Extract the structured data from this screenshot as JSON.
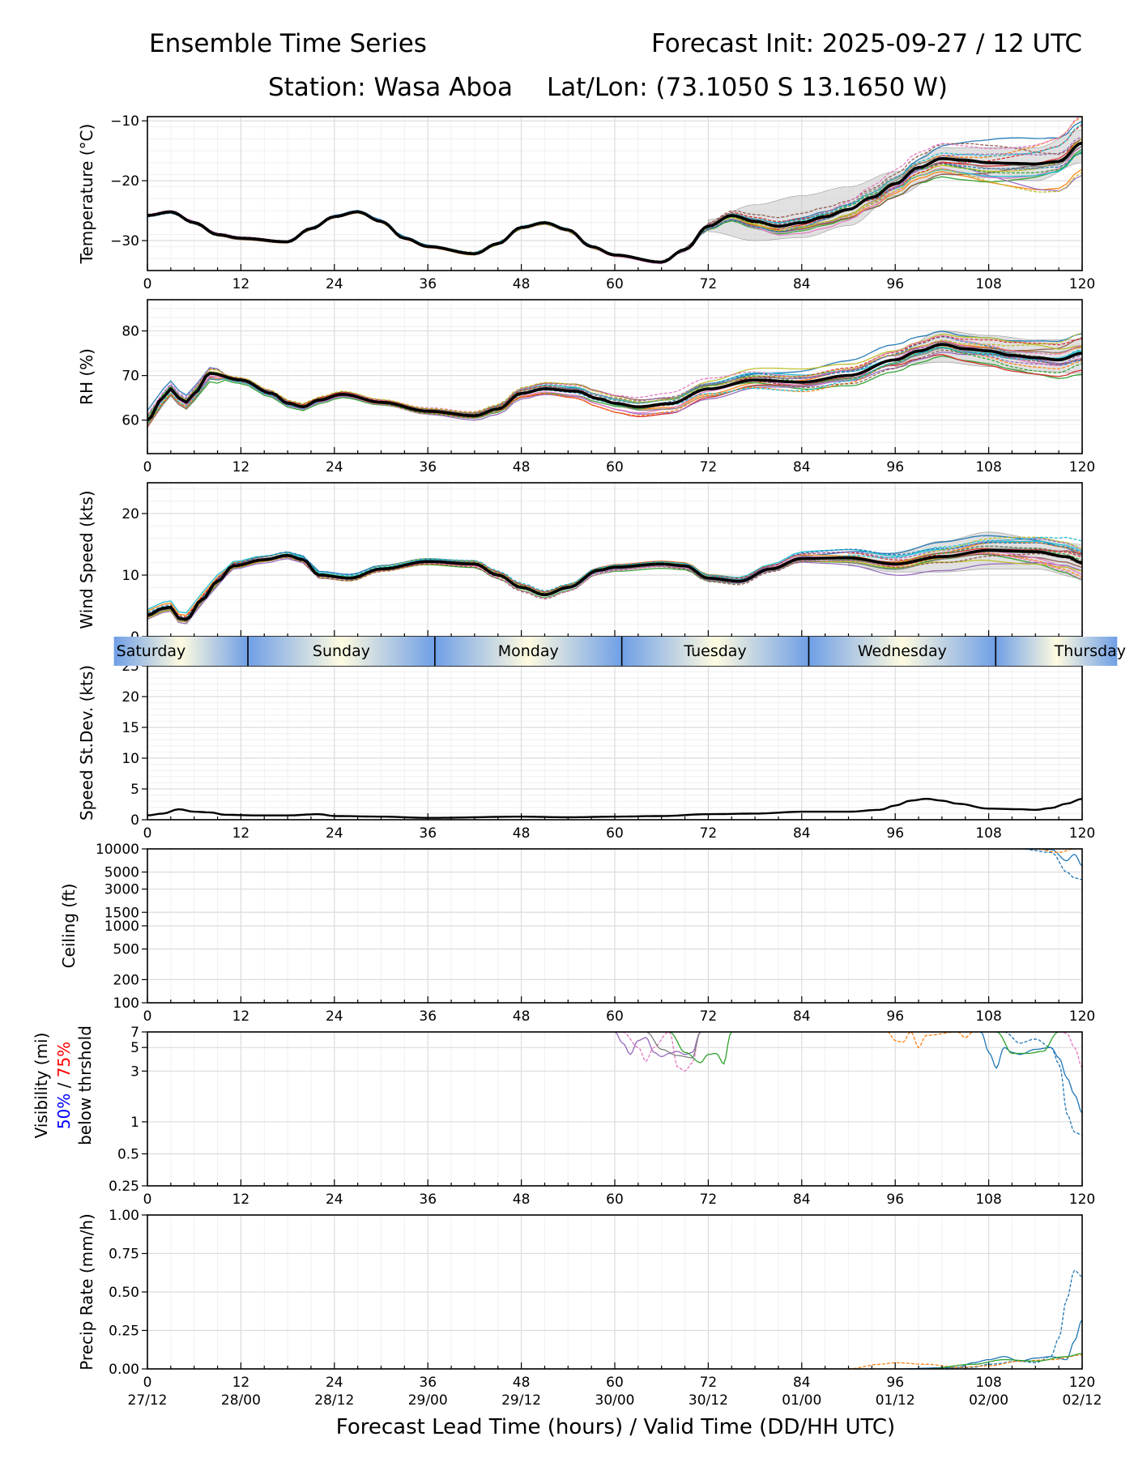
{
  "header": {
    "title_left": "Ensemble Time Series",
    "title_right": "Forecast Init: 2025-09-27 / 12 UTC",
    "station": "Station: Wasa Aboa",
    "latlon": "Lat/Lon: (73.1050 S 13.1650 W)"
  },
  "colors": {
    "members": [
      "#1f77b4",
      "#ff7f0e",
      "#2ca02c",
      "#d62728",
      "#9467bd",
      "#8c564b",
      "#e377c2",
      "#7f7f7f",
      "#bcbd22",
      "#17becf"
    ],
    "mean": "#000000",
    "spread_fill": "#c8c8c8",
    "day_band_a": "#6f9fe6",
    "day_band_b": "#fffbe0",
    "vis_label_50": "#0000ff",
    "vis_label_75": "#ff0000"
  },
  "xaxis": {
    "ticks": [
      "0",
      "12",
      "24",
      "36",
      "48",
      "60",
      "72",
      "84",
      "96",
      "108",
      "120"
    ],
    "valid_times": [
      "27/12",
      "28/00",
      "28/12",
      "29/00",
      "29/12",
      "30/00",
      "30/12",
      "01/00",
      "01/12",
      "02/00",
      "02/12"
    ],
    "label": "Forecast Lead Time (hours) / Valid Time (DD/HH UTC)",
    "range": [
      0,
      120
    ]
  },
  "day_band": {
    "days": [
      "Saturday",
      "Sunday",
      "Monday",
      "Tuesday",
      "Wednesday",
      "Thursday"
    ],
    "boundaries_hours": [
      12.9,
      36.9,
      60.9,
      84.9,
      108.9
    ]
  },
  "vis_label": {
    "line1": "Visibility (mi)",
    "pct50": "50%",
    "sep": " / ",
    "pct75": "75%",
    "line3": "below thrshold"
  },
  "chart_data": [
    {
      "id": "temp",
      "type": "line",
      "ylabel": "Temperature (°C)",
      "ylim": [
        -35,
        -9.3
      ],
      "yticks": [
        -30,
        -20,
        -10
      ],
      "ytick_labels": [
        "−30",
        "−20",
        "−10"
      ],
      "series": [
        {
          "name": "ensemble-mean",
          "x": [
            0,
            3,
            6,
            9,
            12,
            18,
            21,
            24,
            27,
            30,
            33,
            36,
            42,
            45,
            48,
            51,
            54,
            57,
            60,
            66,
            69,
            72,
            75,
            78,
            81,
            84,
            87,
            90,
            93,
            96,
            99,
            102,
            105,
            108,
            111,
            114,
            117,
            120
          ],
          "values": [
            -25.8,
            -25.2,
            -27,
            -29,
            -29.6,
            -30.2,
            -28,
            -26,
            -25.2,
            -26.8,
            -29.6,
            -31,
            -32.2,
            -30.5,
            -27.8,
            -27,
            -28.2,
            -31,
            -32.4,
            -33.6,
            -31.5,
            -27.6,
            -25.8,
            -26.8,
            -27.6,
            -27,
            -26,
            -24.8,
            -22.8,
            -20.5,
            -17.8,
            -16.3,
            -16.6,
            -17,
            -17.1,
            -17.2,
            -16.8,
            -13.7
          ]
        }
      ],
      "spread": {
        "x": [
          72,
          78,
          84,
          90,
          96,
          102,
          108,
          114,
          120
        ],
        "low": [
          -28.5,
          -30,
          -29.5,
          -27.5,
          -22.5,
          -19,
          -19.5,
          -20,
          -17
        ],
        "high": [
          -26.5,
          -24,
          -22.5,
          -21,
          -18.5,
          -14.5,
          -14.5,
          -14.5,
          -11.5
        ]
      }
    },
    {
      "id": "rh",
      "type": "line",
      "ylabel": "RH (%)",
      "ylim": [
        52.5,
        87
      ],
      "yticks": [
        60,
        70,
        80
      ],
      "ytick_labels": [
        "60",
        "70",
        "80"
      ],
      "series": [
        {
          "name": "ensemble-mean",
          "x": [
            0,
            2,
            3,
            4,
            5,
            6,
            8,
            12,
            16,
            18,
            20,
            22,
            25,
            30,
            36,
            42,
            45,
            48,
            51,
            55,
            58,
            60,
            63,
            67,
            72,
            78,
            84,
            90,
            96,
            99,
            102,
            105,
            108,
            111,
            114,
            117,
            120
          ],
          "values": [
            60,
            65,
            67,
            65,
            64,
            66,
            70.5,
            69,
            66,
            63.8,
            63,
            64.5,
            65.8,
            64,
            62,
            61,
            62.5,
            66,
            67,
            66.5,
            64.8,
            63.8,
            63,
            63.7,
            67,
            69,
            68.5,
            70,
            73.5,
            75.5,
            77,
            76,
            75.5,
            74.5,
            74,
            73.5,
            75
          ]
        }
      ],
      "spread": {
        "x": [
          96,
          102,
          108,
          114,
          120
        ],
        "low": [
          72,
          73,
          72,
          71,
          70.5
        ],
        "high": [
          75,
          80,
          79,
          78,
          78
        ]
      }
    },
    {
      "id": "wspd",
      "type": "line",
      "ylabel": "Wind Speed (kts)",
      "ylim": [
        0,
        25
      ],
      "yticks": [
        0,
        10,
        20
      ],
      "ytick_labels": [
        "0",
        "10",
        "20"
      ],
      "series": [
        {
          "name": "ensemble-mean",
          "x": [
            0,
            2,
            3,
            4,
            5,
            7,
            9,
            11,
            15,
            18,
            20,
            22,
            26,
            30,
            36,
            42,
            45,
            48,
            51,
            54,
            58,
            60,
            66,
            69,
            72,
            76,
            80,
            84,
            90,
            96,
            102,
            108,
            114,
            118,
            120
          ],
          "values": [
            3.5,
            4.6,
            4.8,
            3,
            2.8,
            6,
            9,
            11.5,
            12.5,
            13.2,
            12.5,
            10,
            9.5,
            11,
            12.2,
            11.8,
            10,
            8,
            6.8,
            8,
            10.8,
            11.3,
            11.8,
            11.5,
            9.5,
            9,
            11,
            12.7,
            12.8,
            11.8,
            13,
            14,
            13.8,
            13,
            12
          ]
        }
      ],
      "spread": {
        "x": [
          90,
          96,
          102,
          108,
          114,
          120
        ],
        "low": [
          11.5,
          10.5,
          10.5,
          11,
          11,
          9.5
        ],
        "high": [
          13.5,
          13.5,
          15.5,
          17,
          16,
          15
        ]
      }
    },
    {
      "id": "sdev",
      "type": "line",
      "ylabel": "Speed St.Dev. (kts)",
      "ylim": [
        0,
        25
      ],
      "yticks": [
        0,
        5,
        10,
        15,
        20,
        25
      ],
      "ytick_labels": [
        "0",
        "5",
        "10",
        "15",
        "20",
        "25"
      ],
      "series": [
        {
          "name": "speed-stdev",
          "x": [
            0,
            2,
            4,
            6,
            8,
            10,
            14,
            18,
            22,
            24,
            30,
            36,
            48,
            54,
            60,
            66,
            72,
            78,
            84,
            90,
            94,
            96,
            98,
            100,
            102,
            104,
            108,
            112,
            114,
            116,
            118,
            120
          ],
          "values": [
            0.7,
            1,
            1.7,
            1.3,
            1.2,
            0.8,
            0.7,
            0.7,
            0.9,
            0.6,
            0.5,
            0.3,
            0.5,
            0.4,
            0.5,
            0.6,
            0.9,
            1,
            1.3,
            1.3,
            1.6,
            2.3,
            3.1,
            3.4,
            3.1,
            2.6,
            1.8,
            1.7,
            1.6,
            1.9,
            2.6,
            3.4
          ]
        }
      ]
    },
    {
      "id": "ceiling",
      "type": "line",
      "ylabel": "Ceiling (ft)",
      "yscale": "log",
      "ylim": [
        100,
        10000
      ],
      "yticks": [
        100,
        200,
        500,
        1000,
        1500,
        3000,
        5000,
        10000
      ],
      "ytick_labels": [
        "100",
        "200",
        "500",
        "1000",
        "1500",
        "3000",
        "5000",
        "10000"
      ],
      "series": [
        {
          "name": "member-blue-solid",
          "x": [
            108,
            112,
            116,
            118,
            119,
            120
          ],
          "values": [
            10000,
            10000,
            9800,
            7000,
            8500,
            6000
          ]
        },
        {
          "name": "member-blue-dashed",
          "x": [
            112,
            116,
            118,
            119,
            120
          ],
          "values": [
            10000,
            9000,
            5000,
            4200,
            4000
          ]
        },
        {
          "name": "member-orange-dashed",
          "x": [
            114,
            117,
            119,
            120
          ],
          "values": [
            10000,
            9000,
            10000,
            10000
          ]
        }
      ]
    },
    {
      "id": "vis",
      "type": "line",
      "yscale": "log",
      "ylim": [
        0.25,
        7
      ],
      "yticks": [
        0.25,
        0.5,
        1,
        3,
        5,
        7
      ],
      "ytick_labels": [
        "0.25",
        "0.5",
        "1",
        "3",
        "5",
        "7"
      ],
      "series": [
        {
          "name": "member-purple",
          "x": [
            60,
            61,
            62,
            63,
            64,
            65,
            66,
            67,
            68,
            69,
            70,
            71
          ],
          "values": [
            7,
            5.5,
            4.3,
            5.8,
            6.2,
            4.5,
            4.1,
            4.4,
            4.6,
            4.3,
            4.5,
            7
          ]
        },
        {
          "name": "member-pink-dashed",
          "x": [
            61,
            63,
            64,
            65,
            67,
            68,
            69,
            70,
            71
          ],
          "values": [
            7,
            5,
            3.7,
            5,
            7,
            3.3,
            3,
            3.6,
            7
          ]
        },
        {
          "name": "member-green",
          "x": [
            67,
            69,
            71,
            72,
            73,
            74,
            75
          ],
          "values": [
            7,
            4.5,
            3.6,
            4.3,
            4.4,
            3.5,
            7
          ]
        },
        {
          "name": "member-grey",
          "x": [
            64,
            66,
            68,
            70,
            71
          ],
          "values": [
            7,
            4.8,
            4.2,
            4,
            7
          ]
        },
        {
          "name": "member-orange-dashed",
          "x": [
            95,
            96,
            97,
            98,
            99,
            100,
            104,
            105,
            106
          ],
          "values": [
            7,
            5.8,
            5.6,
            7,
            5,
            6.5,
            7,
            6.2,
            7
          ]
        },
        {
          "name": "member-blue",
          "x": [
            107,
            108,
            109,
            110,
            111,
            112,
            114,
            116,
            117,
            118,
            119,
            120
          ],
          "values": [
            7,
            4.5,
            3.2,
            5,
            4.5,
            4.3,
            4.8,
            5,
            4,
            2.6,
            1.8,
            1.2
          ]
        },
        {
          "name": "member-blue-dashed",
          "x": [
            110,
            112,
            114,
            116,
            117,
            118,
            119,
            120
          ],
          "values": [
            7,
            5.5,
            6,
            5,
            3.5,
            1.2,
            0.8,
            0.75
          ]
        },
        {
          "name": "member-green-2",
          "x": [
            109,
            111,
            113,
            115,
            117
          ],
          "values": [
            7,
            4.4,
            4.4,
            4.6,
            7
          ]
        },
        {
          "name": "member-pink-dashed-2",
          "x": [
            117,
            118,
            119,
            120
          ],
          "values": [
            7,
            6.8,
            5,
            3.2
          ]
        }
      ]
    },
    {
      "id": "precip",
      "type": "line",
      "ylabel": "Precip Rate (mm/h)",
      "ylim": [
        0,
        1
      ],
      "yticks": [
        0,
        0.25,
        0.5,
        0.75,
        1
      ],
      "ytick_labels": [
        "0.00",
        "0.25",
        "0.50",
        "0.75",
        "1.00"
      ],
      "series": [
        {
          "name": "member-blue-dashed",
          "x": [
            100,
            106,
            108,
            112,
            114,
            116,
            117,
            118,
            119,
            120
          ],
          "values": [
            0,
            0.01,
            0.03,
            0.05,
            0.04,
            0.08,
            0.2,
            0.45,
            0.64,
            0.6
          ]
        },
        {
          "name": "member-blue",
          "x": [
            96,
            104,
            106,
            108,
            110,
            112,
            114,
            116,
            118,
            119,
            120
          ],
          "values": [
            0,
            0.01,
            0.04,
            0.06,
            0.08,
            0.05,
            0.07,
            0.08,
            0.06,
            0.18,
            0.32
          ]
        },
        {
          "name": "member-orange-dashed",
          "x": [
            90,
            94,
            96,
            100,
            104,
            108,
            112,
            116,
            120
          ],
          "values": [
            0,
            0.03,
            0.04,
            0.03,
            0.01,
            0.02,
            0.05,
            0.06,
            0.09
          ]
        },
        {
          "name": "member-green",
          "x": [
            100,
            106,
            110,
            114,
            118,
            120
          ],
          "values": [
            0,
            0.03,
            0.06,
            0.05,
            0.08,
            0.1
          ]
        }
      ]
    }
  ]
}
